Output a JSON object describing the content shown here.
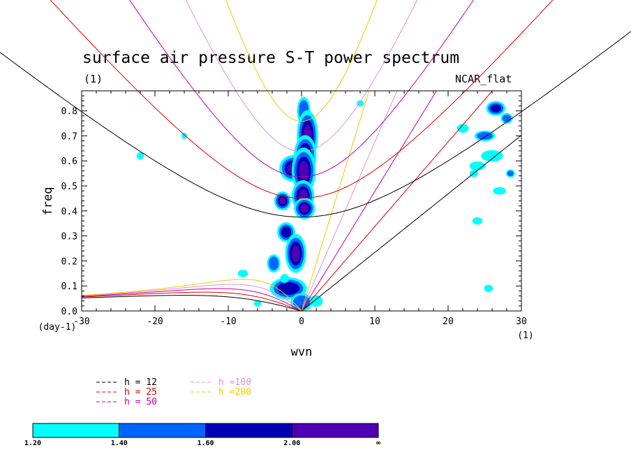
{
  "chart_data": {
    "type": "contour",
    "title": "surface air pressure S-T power spectrum",
    "subtitle_left": "(1)",
    "subtitle_right": "NCAR_flat",
    "xlabel": "wvn",
    "ylabel": "freq",
    "x_unit_label": "(1)",
    "y_unit_label": "(day-1)",
    "xlim": [
      -30,
      30
    ],
    "ylim": [
      0,
      0.88
    ],
    "x_ticks": [
      -30,
      -20,
      -10,
      0,
      10,
      20,
      30
    ],
    "y_ticks": [
      0.0,
      0.1,
      0.2,
      0.3,
      0.4,
      0.5,
      0.6,
      0.7,
      0.8
    ],
    "x_tick_labels": [
      "-30",
      "-20",
      "-10",
      "0",
      "10",
      "20",
      "30"
    ],
    "y_tick_labels": [
      "0.0",
      "0.1",
      "0.2",
      "0.3",
      "0.4",
      "0.5",
      "0.6",
      "0.7",
      "0.8"
    ],
    "dispersion_curves": [
      {
        "label": "h = 12",
        "h": 12,
        "color": "#000000"
      },
      {
        "label": "h = 25",
        "h": 25,
        "color": "#e00000"
      },
      {
        "label": "h = 50",
        "h": 50,
        "color": "#c000a8"
      },
      {
        "label": "h =100",
        "h": 100,
        "color": "#e090d8"
      },
      {
        "label": "h =200",
        "h": 200,
        "color": "#f0c800"
      }
    ],
    "colorbar": {
      "levels": [
        "1.20",
        "1.40",
        "1.60",
        "2.00",
        "∞"
      ],
      "colors": [
        "#00ffff",
        "#0064ff",
        "#0000b4",
        "#5000b4"
      ]
    },
    "spectral_blobs": [
      {
        "x": 0.3,
        "y": 0.8,
        "rx": 0.7,
        "ry": 0.05,
        "level": 1
      },
      {
        "x": 0.8,
        "y": 0.7,
        "rx": 1.0,
        "ry": 0.09,
        "level": 3
      },
      {
        "x": 0.5,
        "y": 0.62,
        "rx": 1.1,
        "ry": 0.07,
        "level": 3
      },
      {
        "x": -1.2,
        "y": 0.57,
        "rx": 1.4,
        "ry": 0.04,
        "level": 3
      },
      {
        "x": 0.3,
        "y": 0.56,
        "rx": 1.2,
        "ry": 0.08,
        "level": 3
      },
      {
        "x": 0.2,
        "y": 0.46,
        "rx": 1.1,
        "ry": 0.05,
        "level": 3
      },
      {
        "x": -2.6,
        "y": 0.44,
        "rx": 0.7,
        "ry": 0.025,
        "level": 3
      },
      {
        "x": 0.4,
        "y": 0.41,
        "rx": 1.0,
        "ry": 0.03,
        "level": 3
      },
      {
        "x": -2.1,
        "y": 0.315,
        "rx": 0.9,
        "ry": 0.03,
        "level": 2
      },
      {
        "x": -0.8,
        "y": 0.23,
        "rx": 1.0,
        "ry": 0.065,
        "level": 3
      },
      {
        "x": -3.8,
        "y": 0.19,
        "rx": 0.7,
        "ry": 0.03,
        "level": 1
      },
      {
        "x": -1.8,
        "y": 0.09,
        "rx": 2.2,
        "ry": 0.035,
        "level": 2
      },
      {
        "x": 0.0,
        "y": 0.035,
        "rx": 1.3,
        "ry": 0.03,
        "level": 1
      },
      {
        "x": -8.0,
        "y": 0.15,
        "rx": 0.6,
        "ry": 0.012,
        "level": 0
      },
      {
        "x": -2.3,
        "y": 0.13,
        "rx": 0.5,
        "ry": 0.015,
        "level": 0
      },
      {
        "x": 22.0,
        "y": 0.73,
        "rx": 0.7,
        "ry": 0.015,
        "level": 0
      },
      {
        "x": 26.5,
        "y": 0.81,
        "rx": 1.0,
        "ry": 0.02,
        "level": 2
      },
      {
        "x": 25.0,
        "y": 0.7,
        "rx": 1.2,
        "ry": 0.015,
        "level": 1
      },
      {
        "x": 26.0,
        "y": 0.62,
        "rx": 1.4,
        "ry": 0.02,
        "level": 0
      },
      {
        "x": 24.0,
        "y": 0.58,
        "rx": 1.0,
        "ry": 0.015,
        "level": 0
      },
      {
        "x": 23.5,
        "y": 0.55,
        "rx": 0.5,
        "ry": 0.012,
        "level": 0
      },
      {
        "x": 28.5,
        "y": 0.55,
        "rx": 0.4,
        "ry": 0.01,
        "level": 1
      },
      {
        "x": 27.0,
        "y": 0.48,
        "rx": 0.8,
        "ry": 0.012,
        "level": 0
      },
      {
        "x": 24.0,
        "y": 0.36,
        "rx": 0.6,
        "ry": 0.012,
        "level": 0
      },
      {
        "x": 25.5,
        "y": 0.09,
        "rx": 0.5,
        "ry": 0.012,
        "level": 0
      },
      {
        "x": -22.0,
        "y": 0.62,
        "rx": 0.4,
        "ry": 0.012,
        "level": 0
      },
      {
        "x": -16.0,
        "y": 0.7,
        "rx": 0.3,
        "ry": 0.01,
        "level": 0
      },
      {
        "x": -6.0,
        "y": 0.03,
        "rx": 0.4,
        "ry": 0.01,
        "level": 0
      },
      {
        "x": 2.0,
        "y": 0.04,
        "rx": 0.8,
        "ry": 0.02,
        "level": 0
      },
      {
        "x": 8.0,
        "y": 0.83,
        "rx": 0.4,
        "ry": 0.01,
        "level": 0
      },
      {
        "x": 28.0,
        "y": 0.77,
        "rx": 0.6,
        "ry": 0.015,
        "level": 1
      }
    ]
  }
}
